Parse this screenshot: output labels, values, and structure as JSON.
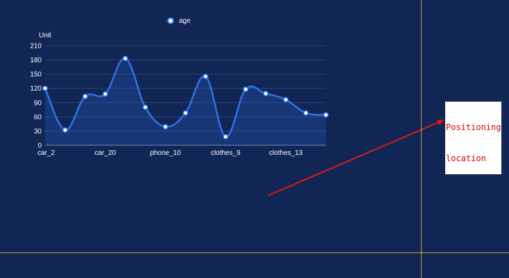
{
  "chart_data": {
    "type": "line",
    "smooth": true,
    "area": true,
    "ylabel": "Unit",
    "ylim": [
      0,
      210
    ],
    "y_ticks": [
      0,
      30,
      60,
      90,
      120,
      150,
      180,
      210
    ],
    "x_tick_labels": [
      "car_2",
      "car_20",
      "phone_10",
      "clothes_9",
      "clothes_13"
    ],
    "x_tick_indices": [
      0,
      3,
      6,
      9,
      12
    ],
    "grid": true,
    "legend": "top-center",
    "series": [
      {
        "name": "age",
        "color": "#2f73e6",
        "values": [
          120,
          32,
          103,
          108,
          183,
          80,
          39,
          68,
          145,
          18,
          118,
          109,
          96,
          68,
          64
        ]
      }
    ]
  },
  "annotation": {
    "lines": [
      "Positioning",
      "location"
    ],
    "text_color": "#d40000",
    "arrow_color": "#e01818"
  },
  "guides": {
    "color": "#c8a23a"
  }
}
